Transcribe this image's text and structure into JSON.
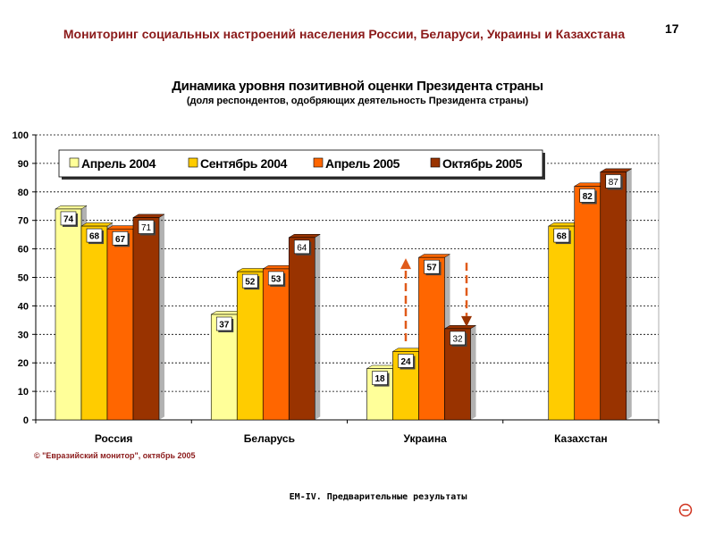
{
  "header": {
    "title": "Мониторинг социальных настроений населения России, Беларуси, Украины и Казахстана",
    "page_number": "17"
  },
  "copyright": "© \"Евразийский монитор\", октябрь 2005",
  "footer": "ЕМ-IV. Предварительные результаты",
  "colors": {
    "header": "#8b1a1a",
    "series": [
      "#ffff99",
      "#ffcc00",
      "#ff6600",
      "#993300"
    ],
    "arrows": "#e05a1a"
  },
  "icons": {
    "corner": "circle-minus-icon"
  },
  "chart_data": {
    "type": "bar",
    "title": "Динамика уровня позитивной оценки Президента страны",
    "subtitle": "(доля респондентов, одобряющих деятельность Президента страны)",
    "categories": [
      "Россия",
      "Беларусь",
      "Украина",
      "Казахстан"
    ],
    "series": [
      {
        "name": "Апрель 2004",
        "values": [
          74,
          37,
          18,
          null
        ]
      },
      {
        "name": "Сентябрь 2004",
        "values": [
          68,
          52,
          24,
          68
        ]
      },
      {
        "name": "Апрель 2005",
        "values": [
          67,
          53,
          57,
          82
        ]
      },
      {
        "name": "Октябрь 2005",
        "values": [
          71,
          64,
          32,
          87
        ]
      }
    ],
    "ylim": [
      0,
      100
    ],
    "yticks": [
      0,
      10,
      20,
      30,
      40,
      50,
      60,
      70,
      80,
      90,
      100
    ],
    "grid": true,
    "legend_position": "top"
  }
}
